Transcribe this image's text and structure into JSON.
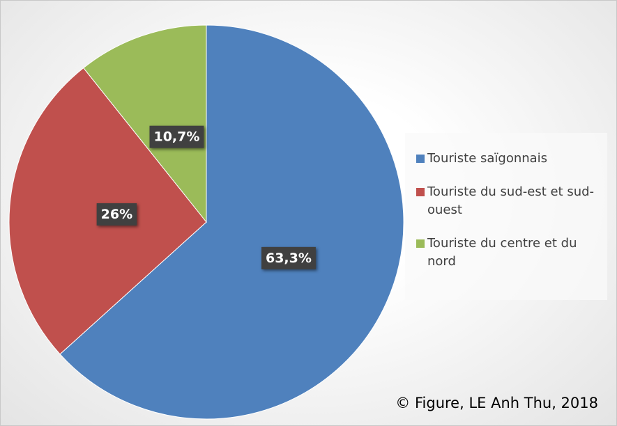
{
  "chart_data": {
    "type": "pie",
    "categories": [
      "Touriste saïgonnais",
      "Touriste du sud-est et sud-ouest",
      "Touriste du centre et du nord"
    ],
    "values": [
      63.3,
      26,
      10.7
    ],
    "value_labels": [
      "63,3%",
      "26%",
      "10,7%"
    ],
    "colors": [
      "#4f81bd",
      "#c0504d",
      "#9bbb59"
    ],
    "legend": "right",
    "annotation": "© Figure, LE Anh Thu, 2018"
  }
}
